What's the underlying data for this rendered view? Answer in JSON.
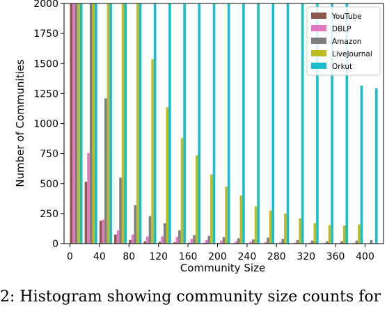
{
  "caption": "2: Histogram showing community size counts for",
  "chart_data": {
    "type": "bar",
    "xlabel": "Community Size",
    "ylabel": "Number of Communities",
    "ylim": [
      0,
      2000
    ],
    "yticks": [
      0,
      250,
      500,
      750,
      1000,
      1250,
      1500,
      1750,
      2000
    ],
    "xtick_labels": [
      "0",
      "40",
      "80",
      "120",
      "160",
      "200",
      "240",
      "280",
      "320",
      "360",
      "400"
    ],
    "xlim": [
      -8,
      425
    ],
    "bin_width": 20,
    "bin_starts": [
      0,
      20,
      40,
      60,
      80,
      100,
      120,
      140,
      160,
      180,
      200,
      220,
      240,
      260,
      280,
      300,
      320,
      340,
      360,
      380,
      400
    ],
    "legend_position": "top-right",
    "grid": false,
    "series": [
      {
        "name": "YouTube",
        "color": "#8c564b",
        "values": [
          2000,
          515,
          190,
          75,
          30,
          20,
          15,
          10,
          8,
          6,
          5,
          4,
          3,
          3,
          2,
          2,
          2,
          2,
          1,
          1,
          1
        ]
      },
      {
        "name": "DBLP",
        "color": "#e377c2",
        "values": [
          2000,
          755,
          200,
          110,
          75,
          60,
          60,
          55,
          40,
          30,
          25,
          20,
          15,
          12,
          10,
          8,
          8,
          6,
          5,
          5,
          4
        ]
      },
      {
        "name": "Amazon",
        "color": "#7f7f7f",
        "values": [
          2000,
          2000,
          1210,
          550,
          320,
          230,
          170,
          110,
          70,
          65,
          55,
          45,
          35,
          50,
          40,
          30,
          25,
          20,
          20,
          25,
          30
        ]
      },
      {
        "name": "LiveJournal",
        "color": "#bcbd22",
        "values": [
          2000,
          2000,
          2000,
          2000,
          2000,
          1535,
          1135,
          880,
          735,
          575,
          475,
          400,
          310,
          275,
          250,
          210,
          170,
          155,
          150,
          160,
          3
        ]
      },
      {
        "name": "Orkut",
        "color": "#17becf",
        "values": [
          2000,
          2000,
          2000,
          2000,
          2000,
          2000,
          2000,
          2000,
          2000,
          2000,
          2000,
          2000,
          2000,
          2000,
          2000,
          2000,
          2000,
          2000,
          2000,
          1315,
          1295
        ]
      }
    ]
  }
}
